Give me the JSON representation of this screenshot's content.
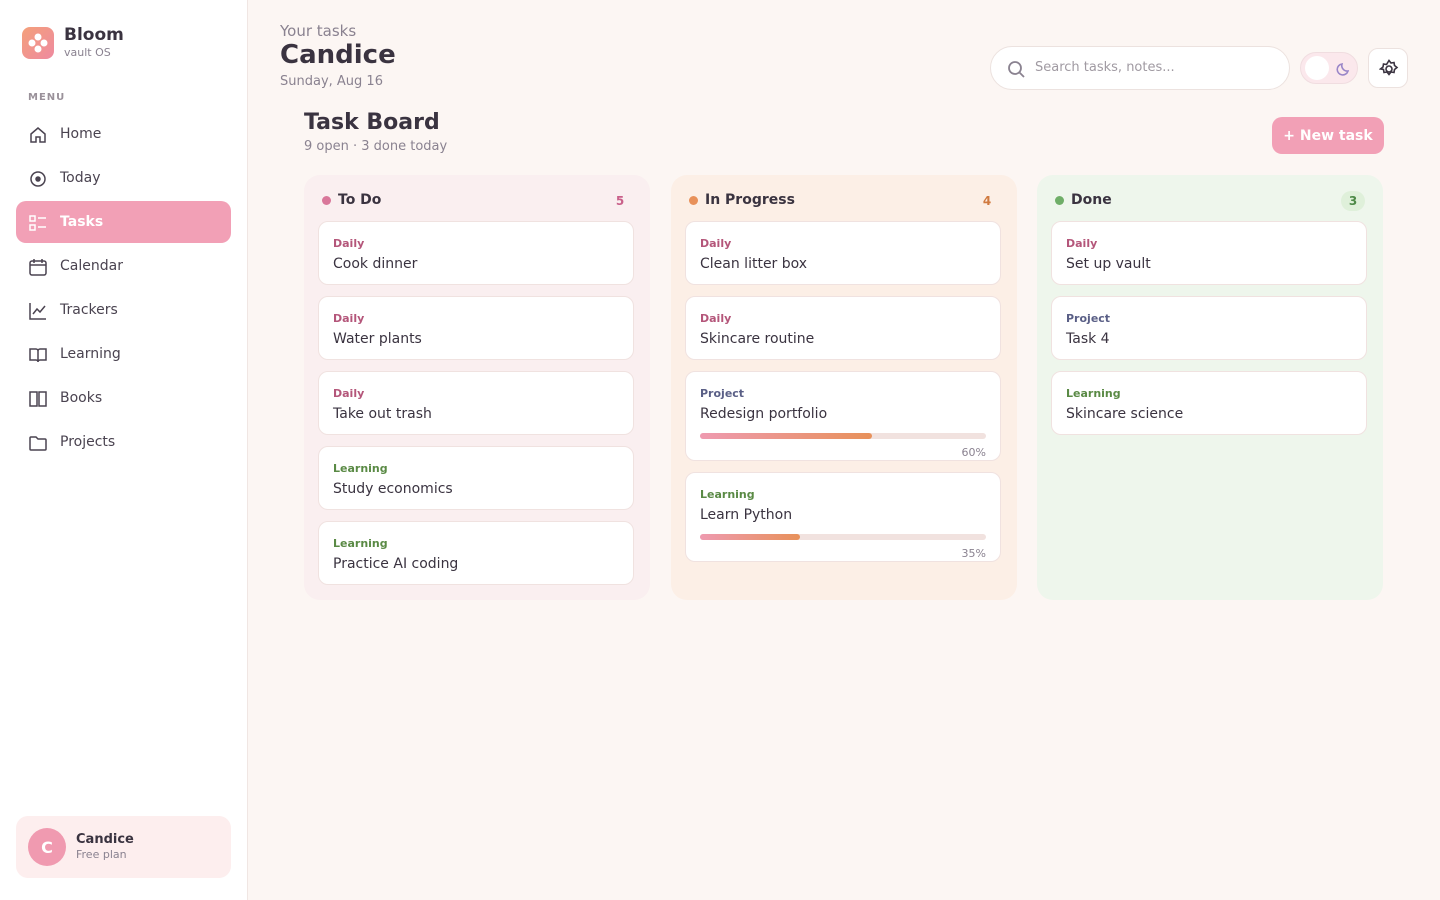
{
  "brand": {
    "name": "Bloom",
    "subtitle": "vault OS"
  },
  "menu": {
    "heading": "MENU",
    "items": [
      "Home",
      "Today",
      "Tasks",
      "Calendar",
      "Trackers",
      "Learning",
      "Books",
      "Projects"
    ]
  },
  "user": {
    "initial": "C",
    "name": "Candice",
    "plan": "Free plan"
  },
  "header": {
    "eyebrow": "Your tasks",
    "title": "Candice",
    "date": "Sunday, Aug 16",
    "search_placeholder": "Search tasks, notes..."
  },
  "board": {
    "title": "Task Board",
    "summary": "9 open · 3 done today",
    "new_button": "+ New task",
    "columns": [
      {
        "name": "To Do",
        "count": 5,
        "cards": [
          {
            "tag": "Daily",
            "title": "Cook dinner"
          },
          {
            "tag": "Daily",
            "title": "Water plants"
          },
          {
            "tag": "Daily",
            "title": "Take out trash"
          },
          {
            "tag": "Learning",
            "title": "Study economics"
          },
          {
            "tag": "Learning",
            "title": "Practice AI coding"
          }
        ]
      },
      {
        "name": "In Progress",
        "count": 4,
        "cards": [
          {
            "tag": "Daily",
            "title": "Clean litter box"
          },
          {
            "tag": "Daily",
            "title": "Skincare routine"
          },
          {
            "tag": "Project",
            "title": "Redesign portfolio",
            "progress": 60,
            "progress_label": "60%"
          },
          {
            "tag": "Learning",
            "title": "Learn Python",
            "progress": 35,
            "progress_label": "35%"
          }
        ]
      },
      {
        "name": "Done",
        "count": 3,
        "cards": [
          {
            "tag": "Daily",
            "title": "Set up vault"
          },
          {
            "tag": "Project",
            "title": "Task 4"
          },
          {
            "tag": "Learning",
            "title": "Skincare science"
          }
        ]
      }
    ]
  }
}
